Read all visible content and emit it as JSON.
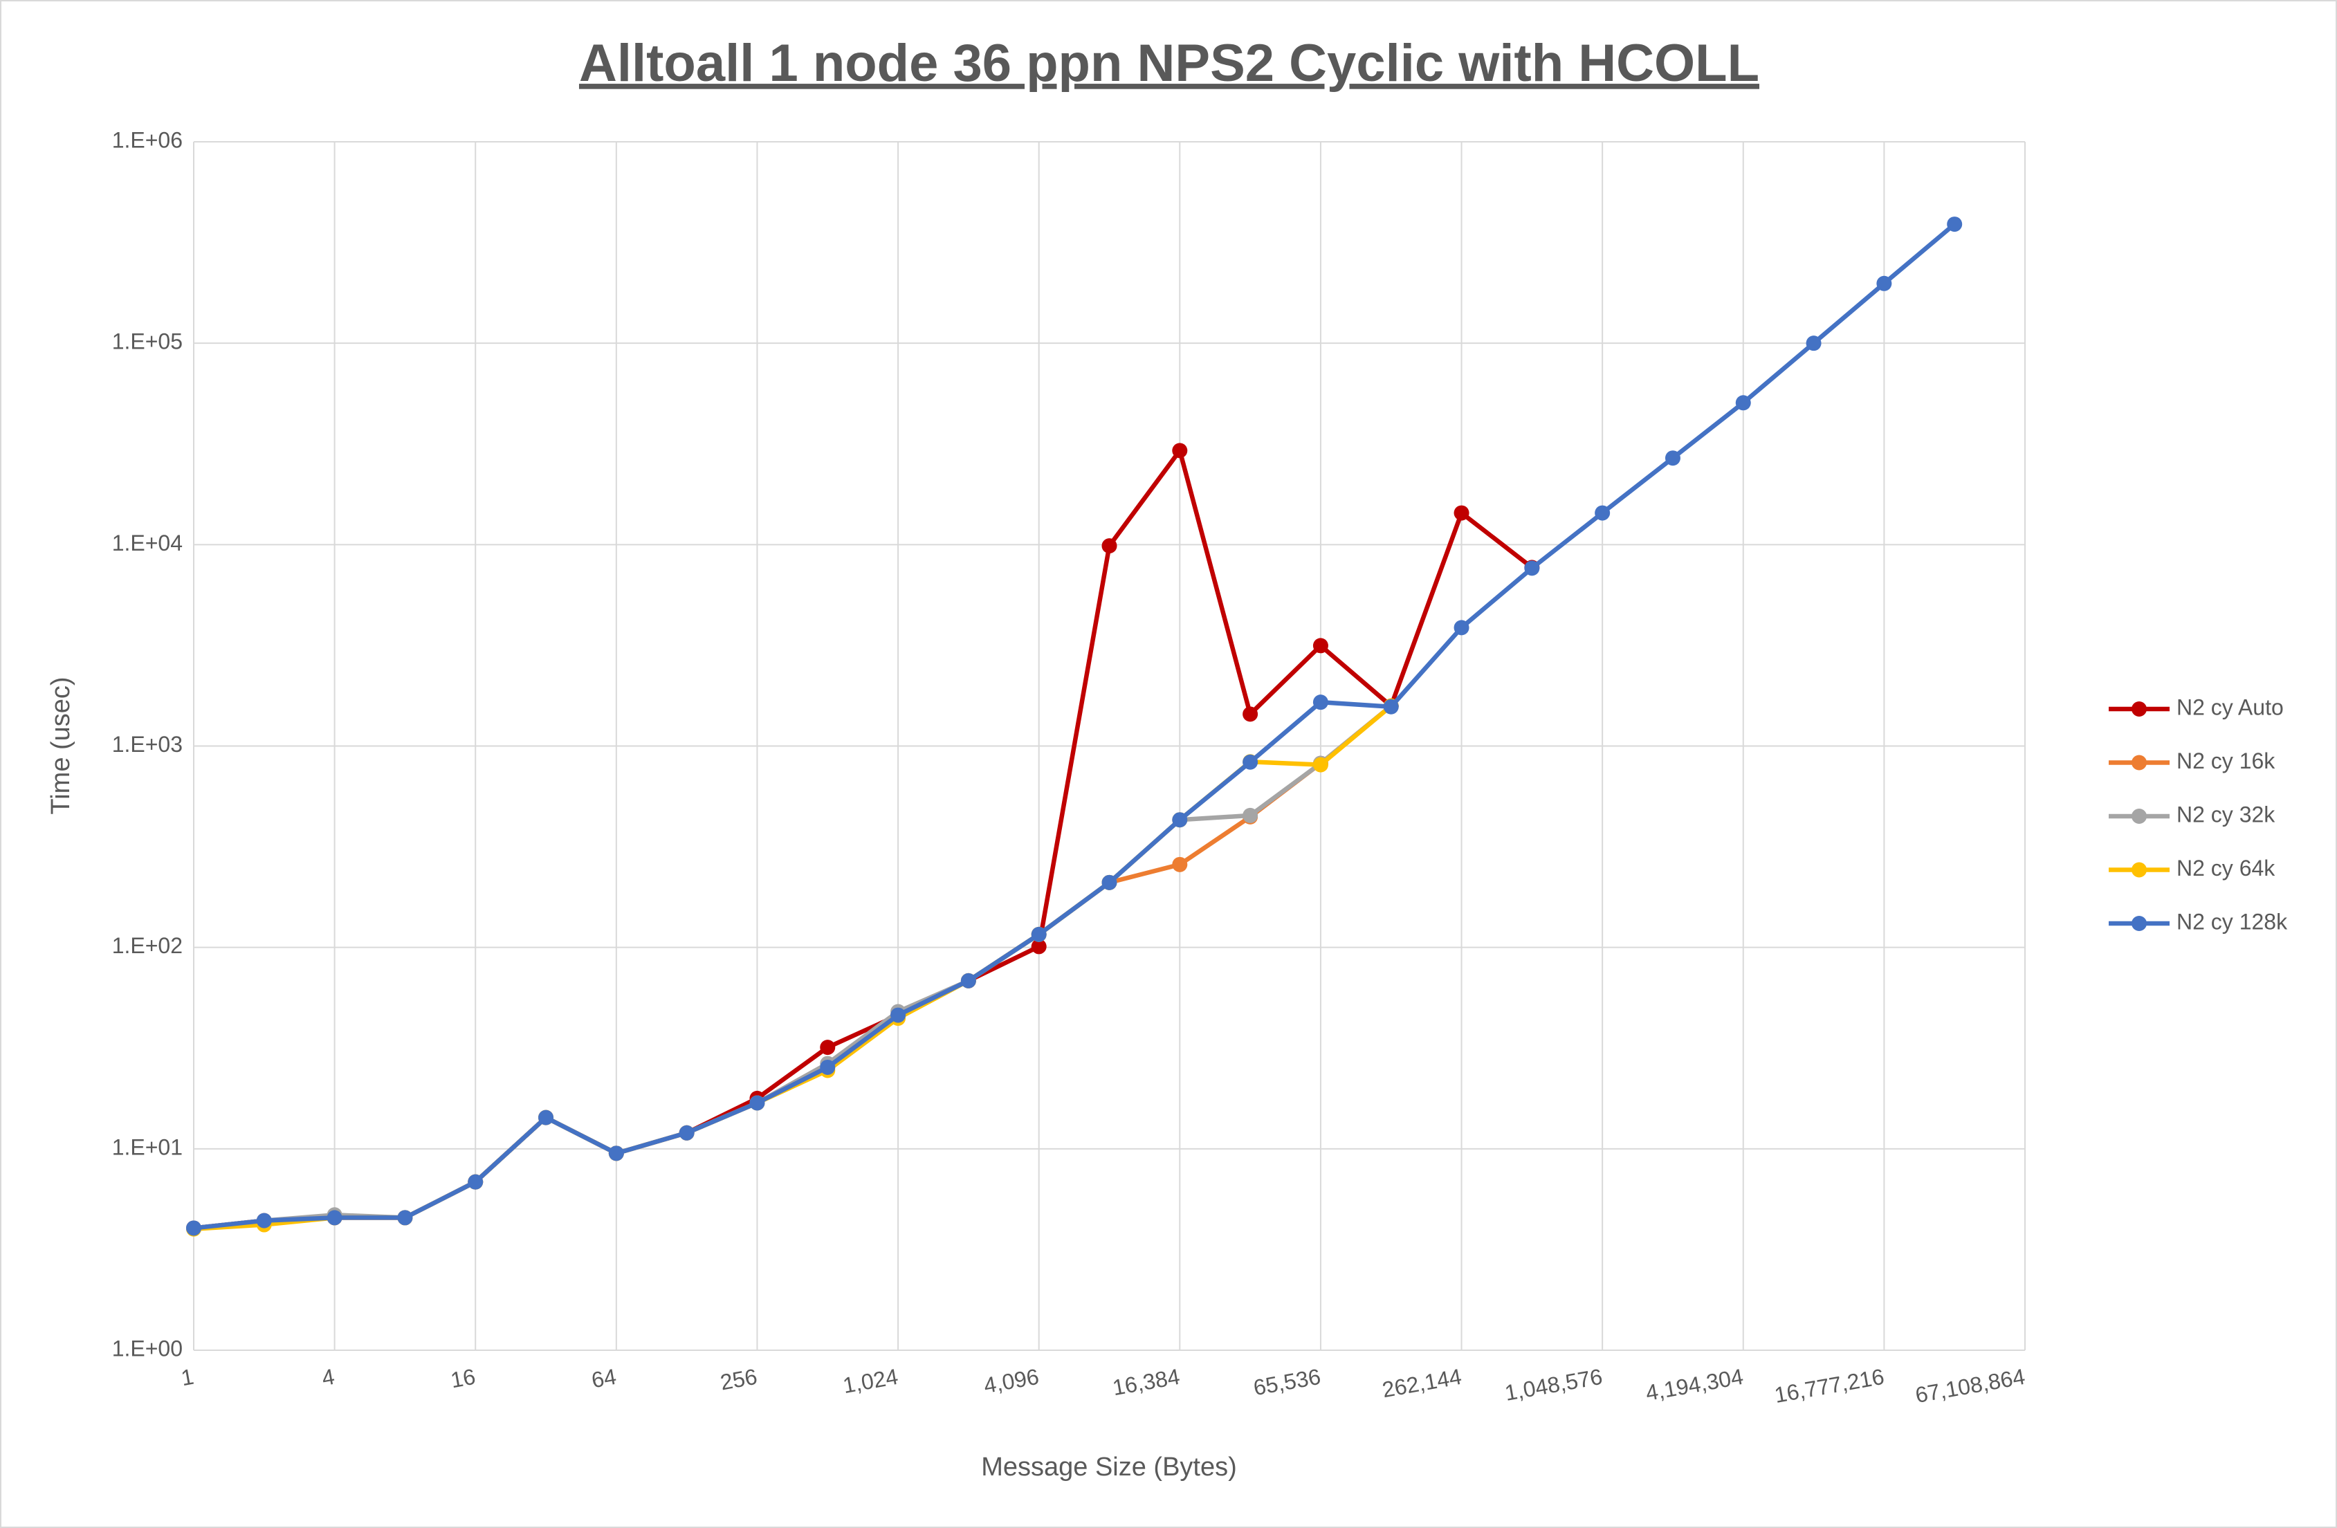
{
  "chart_data": {
    "type": "line",
    "title": "Alltoall 1 node 36 ppn NPS2 Cyclic with HCOLL",
    "x_label": "Message Size (Bytes)",
    "y_label": "Time (usec)",
    "xscale": "log",
    "yscale": "log",
    "grid": true,
    "legend": "right",
    "x": [
      1,
      2,
      4,
      8,
      16,
      32,
      64,
      128,
      256,
      512,
      1024,
      2048,
      4096,
      8192,
      16384,
      32768,
      65536,
      131072,
      262144,
      524288,
      1048576,
      2097152,
      4194304,
      8388608,
      16777216,
      33554432
    ],
    "xlim": [
      1,
      67108864
    ],
    "xticks": [
      1,
      4,
      16,
      64,
      256,
      {
        "value": 1024,
        "label": "1,024"
      },
      {
        "value": 4096,
        "label": "4,096"
      },
      {
        "value": 16384,
        "label": "16,384"
      },
      {
        "value": 65536,
        "label": "65,536"
      },
      {
        "value": 262144,
        "label": "262,144"
      },
      {
        "value": 1048576,
        "label": "1,048,576"
      },
      {
        "value": 4194304,
        "label": "4,194,304"
      },
      {
        "value": 16777216,
        "label": "16,777,216"
      },
      {
        "value": 67108864,
        "label": "67,108,864"
      }
    ],
    "ylim": [
      1,
      1000000
    ],
    "yticks": [
      {
        "value": 1,
        "label": "1.E+00"
      },
      {
        "value": 10,
        "label": "1.E+01"
      },
      {
        "value": 100,
        "label": "1.E+02"
      },
      {
        "value": 1000,
        "label": "1.E+03"
      },
      {
        "value": 10000,
        "label": "1.E+04"
      },
      {
        "value": 100000,
        "label": "1.E+05"
      },
      {
        "value": 1000000,
        "label": "1.E+06"
      }
    ],
    "series": [
      {
        "name": "N2 cy Auto",
        "color": "#c00000",
        "values": [
          4.04,
          4.4,
          4.55,
          4.55,
          6.85,
          14.3,
          9.5,
          12.0,
          17.8,
          31.9,
          46,
          68.3,
          101,
          9860,
          29300,
          1440,
          3150,
          1580,
          14360,
          7700,
          null,
          null,
          null,
          null,
          null,
          null
        ]
      },
      {
        "name": "N2 cy 16k",
        "color": "#ed7d31",
        "values": [
          4.04,
          4.4,
          4.55,
          4.55,
          6.85,
          14.3,
          9.5,
          12.0,
          16.9,
          25.4,
          46.1,
          68.3,
          116,
          210,
          258,
          445,
          820,
          1580,
          null,
          null,
          null,
          null,
          null,
          null,
          null,
          null
        ]
      },
      {
        "name": "N2 cy 32k",
        "color": "#a5a5a5",
        "values": [
          4.04,
          4.4,
          4.7,
          4.55,
          6.85,
          14.3,
          9.5,
          12.0,
          16.9,
          26.5,
          48,
          68.3,
          116,
          210,
          430,
          452,
          820,
          1580,
          null,
          null,
          null,
          null,
          null,
          null,
          null,
          null
        ]
      },
      {
        "name": "N2 cy 64k",
        "color": "#ffc000",
        "values": [
          4.0,
          4.2,
          4.55,
          4.55,
          6.85,
          14.3,
          9.5,
          12.0,
          16.9,
          24.5,
          44.5,
          68.3,
          116,
          210,
          430,
          835,
          807,
          1580,
          null,
          null,
          null,
          null,
          null,
          null,
          null,
          null
        ]
      },
      {
        "name": "N2 cy 128k",
        "color": "#4472c4",
        "values": [
          4.04,
          4.4,
          4.55,
          4.55,
          6.85,
          14.3,
          9.5,
          12.0,
          16.9,
          25.4,
          46.1,
          68.3,
          116,
          210,
          430,
          832,
          1650,
          1567,
          3870,
          7640,
          14360,
          26900,
          50600,
          100000,
          198000,
          390000
        ]
      }
    ]
  }
}
